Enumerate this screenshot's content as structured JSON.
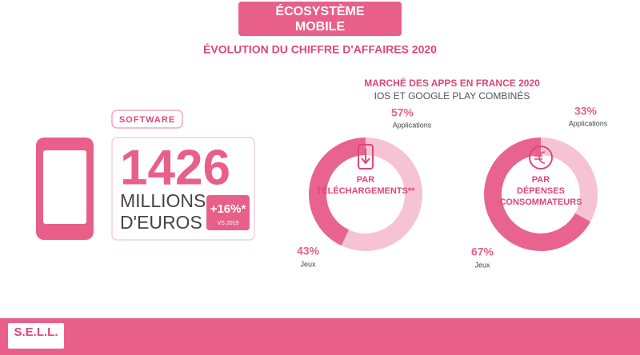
{
  "header": {
    "title_lines": [
      "ÉCOSYSTÈME",
      "MOBILE"
    ],
    "subtitle": "ÉVOLUTION DU CHIFFRE D'AFFAIRES 2020"
  },
  "software": {
    "label": "SOFTWARE",
    "amount": "1426",
    "unit_lines": [
      "MILLIONS",
      "D'EUROS"
    ],
    "growth": "+16%*",
    "growth_note": "VS 2019"
  },
  "market": {
    "title": "MARCHÉ DES APPS EN FRANCE 2020",
    "subtitle": "IOS ET GOOGLE PLAY COMBINÉS",
    "donuts": [
      {
        "title_lines": [
          "PAR",
          "TÉLÉCHARGEMENTS**"
        ],
        "icon": "download",
        "segments": [
          {
            "name": "Applications",
            "value": 57,
            "label": "57%",
            "color": "#f6c3d5"
          },
          {
            "name": "Jeux",
            "value": 43,
            "label": "43%",
            "color": "#e8648f"
          }
        ]
      },
      {
        "title_lines": [
          "PAR",
          "DÉPENSES",
          "CONSOMMATEURS"
        ],
        "icon": "euro",
        "segments": [
          {
            "name": "Applications",
            "value": 33,
            "label": "33%",
            "color": "#f6c3d5"
          },
          {
            "name": "Jeux",
            "value": 67,
            "label": "67%",
            "color": "#e8648f"
          }
        ]
      }
    ]
  },
  "footer": {
    "logo": "S.E.L.L."
  }
}
